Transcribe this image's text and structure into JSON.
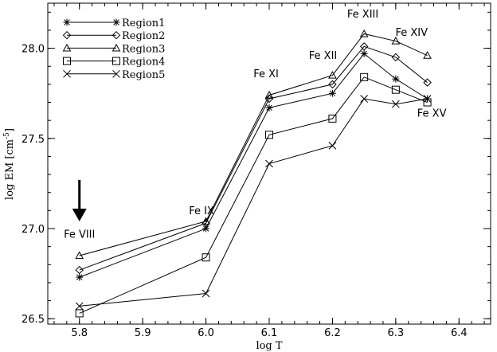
{
  "chart_data": {
    "type": "line",
    "xlabel": "log T",
    "ylabel": "log EM [cm",
    "ylabel_exponent": "-5",
    "xlim": [
      5.75,
      6.45
    ],
    "ylim": [
      26.47,
      28.25
    ],
    "xticks": [
      5.8,
      5.9,
      6.0,
      6.1,
      6.2,
      6.3,
      6.4
    ],
    "xtick_labels": [
      "5.8",
      "5.9",
      "6.0",
      "6.1",
      "6.2",
      "6.3",
      "6.4"
    ],
    "yticks": [
      26.5,
      27.0,
      27.5,
      28.0
    ],
    "ytick_labels": [
      "26.5",
      "27.0",
      "27.5",
      "28.0"
    ],
    "legend_position": "top-left",
    "series": [
      {
        "name": "Region1",
        "marker": "asterisk",
        "x": [
          5.8,
          6.0,
          6.1,
          6.2,
          6.25,
          6.3,
          6.35
        ],
        "y": [
          26.73,
          27.0,
          27.67,
          27.75,
          27.97,
          27.83,
          27.72
        ]
      },
      {
        "name": "Region2",
        "marker": "diamond",
        "x": [
          5.8,
          6.0,
          6.1,
          6.2,
          6.25,
          6.3,
          6.35
        ],
        "y": [
          26.77,
          27.03,
          27.72,
          27.8,
          28.01,
          27.95,
          27.81
        ]
      },
      {
        "name": "Region3",
        "marker": "triangle",
        "x": [
          5.8,
          6.0,
          6.1,
          6.2,
          6.25,
          6.3,
          6.35
        ],
        "y": [
          26.85,
          27.04,
          27.74,
          27.85,
          28.08,
          28.04,
          27.96
        ]
      },
      {
        "name": "Region4",
        "marker": "square",
        "x": [
          5.8,
          6.0,
          6.1,
          6.2,
          6.25,
          6.3,
          6.35
        ],
        "y": [
          26.53,
          26.84,
          27.52,
          27.61,
          27.84,
          27.77,
          27.7
        ]
      },
      {
        "name": "Region5",
        "marker": "x",
        "x": [
          5.8,
          6.0,
          6.1,
          6.2,
          6.25,
          6.3,
          6.35
        ],
        "y": [
          26.57,
          26.64,
          27.36,
          27.46,
          27.72,
          27.69,
          27.72
        ]
      }
    ],
    "annotations": [
      {
        "text": "Fe VIII",
        "x": 5.8,
        "y": 26.95
      },
      {
        "text": "Fe IX",
        "x": 5.993,
        "y": 27.08
      },
      {
        "text": "Fe XI",
        "x": 6.095,
        "y": 27.84
      },
      {
        "text": "Fe XII",
        "x": 6.185,
        "y": 27.94
      },
      {
        "text": "Fe XIII",
        "x": 6.248,
        "y": 28.17
      },
      {
        "text": "Fe XIV",
        "x": 6.325,
        "y": 28.07
      },
      {
        "text": "Fe XV",
        "x": 6.357,
        "y": 27.62
      }
    ],
    "arrow": {
      "x": 5.8,
      "y_from": 27.27,
      "y_to": 27.04
    }
  }
}
